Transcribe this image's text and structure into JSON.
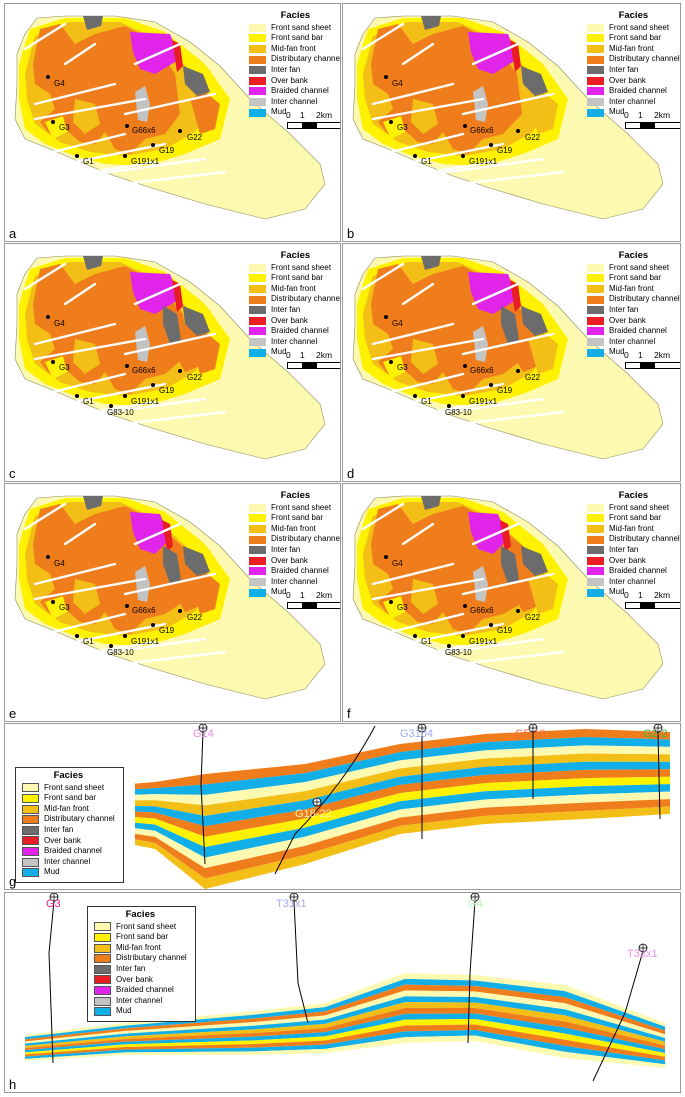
{
  "legend": {
    "title": "Facies",
    "items": [
      {
        "label": "Front sand sheet",
        "color": "#fdf9b0"
      },
      {
        "label": "Front sand bar",
        "color": "#fff200"
      },
      {
        "label": "Mid-fan front",
        "color": "#f3bf17"
      },
      {
        "label": "Distributary channel",
        "color": "#f07d1c"
      },
      {
        "label": "Inter fan",
        "color": "#6c6c6c"
      },
      {
        "label": "Over bank",
        "color": "#ea1c24"
      },
      {
        "label": "Braided channel",
        "color": "#e024e9"
      },
      {
        "label": "Inter channel",
        "color": "#c4c4c4"
      },
      {
        "label": "Mud",
        "color": "#12aee8"
      }
    ]
  },
  "scale_bar": {
    "t0": "0",
    "t1": "1",
    "t2": "2km"
  },
  "maps": [
    {
      "letter": "a",
      "wells": [
        "G4",
        "G3",
        "G66x6",
        "G22",
        "G19",
        "G1",
        "G191x1"
      ]
    },
    {
      "letter": "b",
      "wells": [
        "G4",
        "G3",
        "G66x6",
        "G22",
        "G19",
        "G1",
        "G191x1"
      ]
    },
    {
      "letter": "c",
      "wells": [
        "G4",
        "G3",
        "G66x6",
        "G22",
        "G19",
        "G1",
        "G191x1",
        "G83-10"
      ]
    },
    {
      "letter": "d",
      "wells": [
        "G4",
        "G3",
        "G66x6",
        "G22",
        "G19",
        "G1",
        "G191x1",
        "G83-10"
      ]
    },
    {
      "letter": "e",
      "wells": [
        "G4",
        "G3",
        "G66x6",
        "G22",
        "G19",
        "G1",
        "G191x1",
        "G83-10"
      ]
    },
    {
      "letter": "f",
      "wells": [
        "G4",
        "G3",
        "G66x6",
        "G22",
        "G19",
        "G1",
        "G191x1",
        "G83-10"
      ]
    }
  ],
  "section_g": {
    "letter": "g",
    "wells": [
      {
        "name": "G14",
        "color": "#e98de9"
      },
      {
        "name": "G18-22",
        "color": "#fff2a8"
      },
      {
        "name": "G3104",
        "color": "#a0a8f0"
      },
      {
        "name": "G5-10",
        "color": "#f06a3a"
      },
      {
        "name": "G2-2",
        "color": "#39b54a"
      }
    ]
  },
  "section_h": {
    "letter": "h",
    "wells": [
      {
        "name": "G3",
        "color": "#e0208c"
      },
      {
        "name": "T31x1",
        "color": "#a0a8f0"
      },
      {
        "name": "G4",
        "color": "#b8f0b8"
      },
      {
        "name": "T33x1",
        "color": "#e98de9"
      }
    ]
  }
}
